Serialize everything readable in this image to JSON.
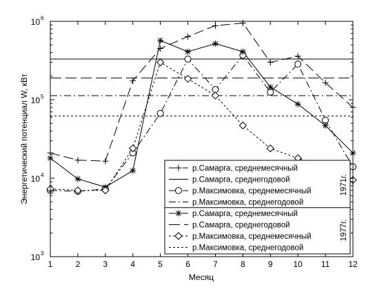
{
  "chart_data": {
    "type": "line",
    "xlabel": "Месяц",
    "ylabel": "Энергетический потенциал W, кВт",
    "x": [
      1,
      2,
      3,
      4,
      5,
      6,
      7,
      8,
      9,
      10,
      11,
      12
    ],
    "xlim": [
      1,
      12
    ],
    "ylim": [
      1000,
      1000000
    ],
    "yscale": "log",
    "ytick_labels": [
      "10",
      "10",
      "10",
      "10"
    ],
    "ytick_exponents": [
      "3",
      "4",
      "5",
      "6"
    ],
    "grid": false,
    "legend_position": "bottom-right",
    "year_labels": [
      "1971г.",
      "1977г."
    ],
    "series": [
      {
        "name": "р.Самарга, среднемесячный",
        "marker": "plus",
        "dash": "long",
        "values": [
          21000,
          17000,
          16500,
          175000,
          450000,
          640000,
          880000,
          950000,
          300000,
          360000,
          165000,
          80000
        ]
      },
      {
        "name": "р.Самарга, среднегодовой",
        "marker": "none",
        "dash": "solid",
        "constant": 330000
      },
      {
        "name": "р.Максимовка, среднемесячный",
        "marker": "circle",
        "dash": "dashdot",
        "values": [
          7000,
          6800,
          7300,
          21000,
          67000,
          330000,
          135000,
          370000,
          125000,
          285000,
          55000,
          14000
        ]
      },
      {
        "name": "р.Максимовка, среднегодовой",
        "marker": "none",
        "dash": "dashdot",
        "constant": 113000
      },
      {
        "name": "р.Самарга, среднемесячный",
        "marker": "star",
        "dash": "solid",
        "values": [
          18000,
          9800,
          7700,
          12500,
          570000,
          410000,
          520000,
          410000,
          145000,
          88000,
          47000,
          21000
        ]
      },
      {
        "name": "р.Самарга, среднегодовой",
        "marker": "none",
        "dash": "longdash",
        "constant": 190000
      },
      {
        "name": "р.Максимовка, среднемесячный",
        "marker": "diamond",
        "dash": "dotted",
        "values": [
          7300,
          7000,
          7000,
          24000,
          300000,
          185000,
          113000,
          47000,
          24000,
          18000,
          14000,
          9500
        ]
      },
      {
        "name": "р.Максимовка, среднегодовой",
        "marker": "none",
        "dash": "dotted",
        "constant": 62000
      }
    ]
  }
}
